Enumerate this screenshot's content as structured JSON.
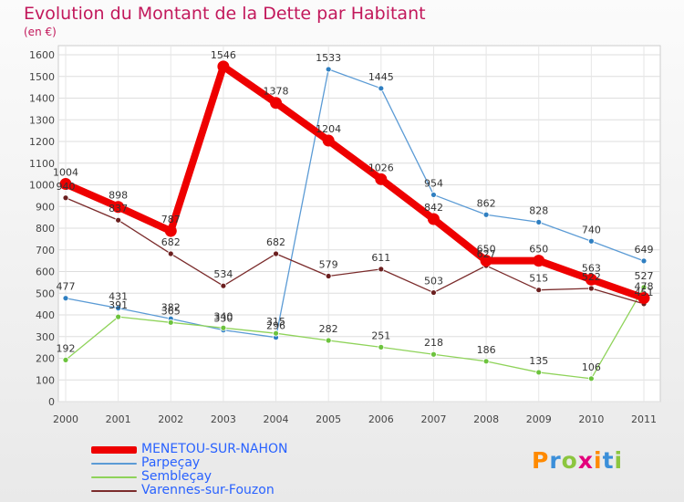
{
  "title": "Evolution du Montant de la Dette par Habitant",
  "subtitle": "(en €)",
  "logo": {
    "text": "Proxiti",
    "letter_colors": [
      "#ff8a00",
      "#3b8fd9",
      "#8cc63f",
      "#e4007c",
      "#ff8a00",
      "#3b8fd9",
      "#8cc63f"
    ]
  },
  "chart_data": {
    "type": "line",
    "x": [
      "2000",
      "2001",
      "2002",
      "2003",
      "2004",
      "2005",
      "2006",
      "2007",
      "2008",
      "2009",
      "2010",
      "2011"
    ],
    "ylim": [
      0,
      1600
    ],
    "yticks": [
      0,
      100,
      200,
      300,
      400,
      500,
      600,
      700,
      800,
      900,
      1000,
      1100,
      1200,
      1300,
      1400,
      1500,
      1600
    ],
    "grid": true,
    "legend_position": "bottom-left",
    "series": [
      {
        "name": "MENETOU-SUR-NAHON",
        "color": "#ee0000",
        "emphasis": true,
        "values": [
          1004,
          898,
          787,
          1546,
          1378,
          1204,
          1026,
          842,
          650,
          650,
          563,
          478
        ],
        "labels": [
          "1004",
          "898",
          "787",
          "1546",
          "1378",
          "1204",
          "1026",
          "842",
          "650",
          "650",
          "563",
          "478"
        ]
      },
      {
        "name": "Parpeçay",
        "color": "#5b9bd5",
        "point_color": "#2f7fc1",
        "values": [
          477,
          431,
          382,
          330,
          296,
          1533,
          1445,
          954,
          862,
          828,
          740,
          649
        ],
        "labels": [
          "477",
          "431",
          "382",
          "330",
          "296",
          "1533",
          "1445",
          "954",
          "862",
          "828",
          "740",
          "649"
        ]
      },
      {
        "name": "Sembleçay",
        "color": "#8fd35a",
        "point_color": "#6cc33d",
        "values": [
          192,
          391,
          365,
          340,
          315,
          282,
          251,
          218,
          186,
          135,
          106,
          527
        ],
        "labels": [
          "192",
          "391",
          "365",
          "340",
          "315",
          "282",
          "251",
          "218",
          "186",
          "135",
          "106",
          "527"
        ]
      },
      {
        "name": "Varennes-sur-Fouzon",
        "color": "#7b2c2c",
        "point_color": "#6b1f1f",
        "values": [
          940,
          837,
          682,
          534,
          682,
          579,
          611,
          503,
          627,
          515,
          522,
          451
        ],
        "labels": [
          "940",
          "837",
          "682",
          "534",
          "682",
          "579",
          "611",
          "503",
          "627",
          "515",
          "522",
          "451"
        ]
      }
    ]
  }
}
